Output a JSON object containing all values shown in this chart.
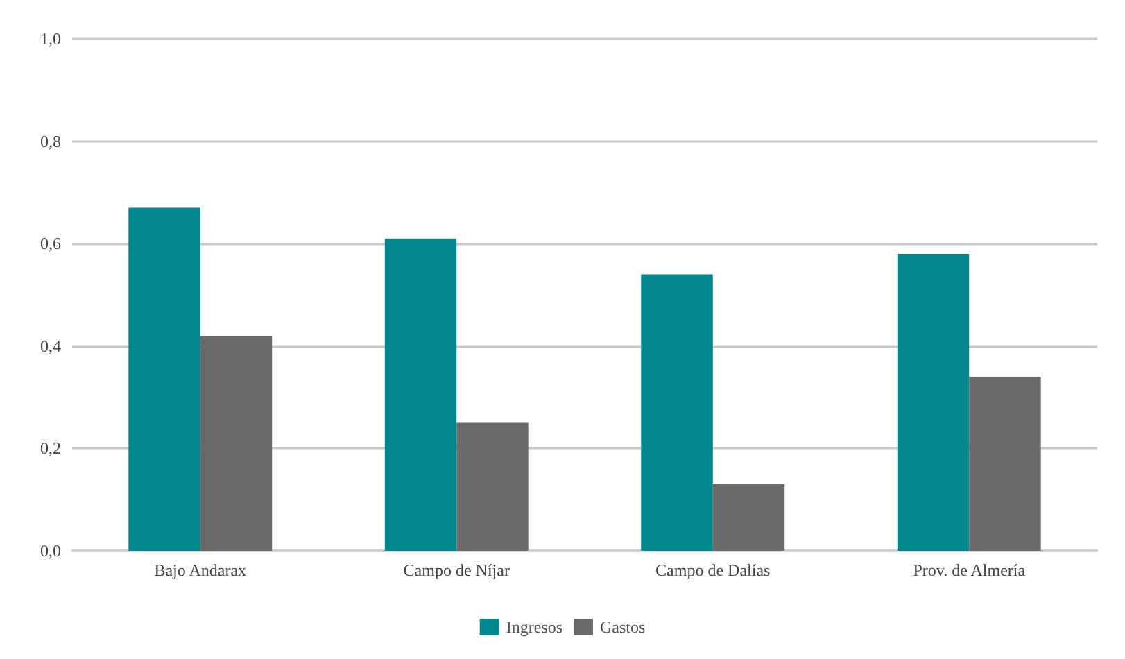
{
  "chart_data": {
    "type": "bar",
    "categories": [
      "Bajo Andarax",
      "Campo de Níjar",
      "Campo de Dalías",
      "Prov. de Almería"
    ],
    "series": [
      {
        "name": "Ingresos",
        "color": "#00878f",
        "values": [
          0.67,
          0.61,
          0.54,
          0.58
        ]
      },
      {
        "name": "Gastos",
        "color": "#6b6a6b",
        "values": [
          0.42,
          0.25,
          0.13,
          0.34
        ]
      }
    ],
    "ylim": [
      0,
      1
    ],
    "yticks": [
      {
        "value": 0,
        "label": "0,0"
      },
      {
        "value": 0.2,
        "label": "0,2"
      },
      {
        "value": 0.4,
        "label": "0,4"
      },
      {
        "value": 0.6,
        "label": "0,6"
      },
      {
        "value": 0.8,
        "label": "0,8"
      },
      {
        "value": 1,
        "label": "1,0"
      }
    ],
    "grid": "y",
    "legend": "bottom"
  }
}
